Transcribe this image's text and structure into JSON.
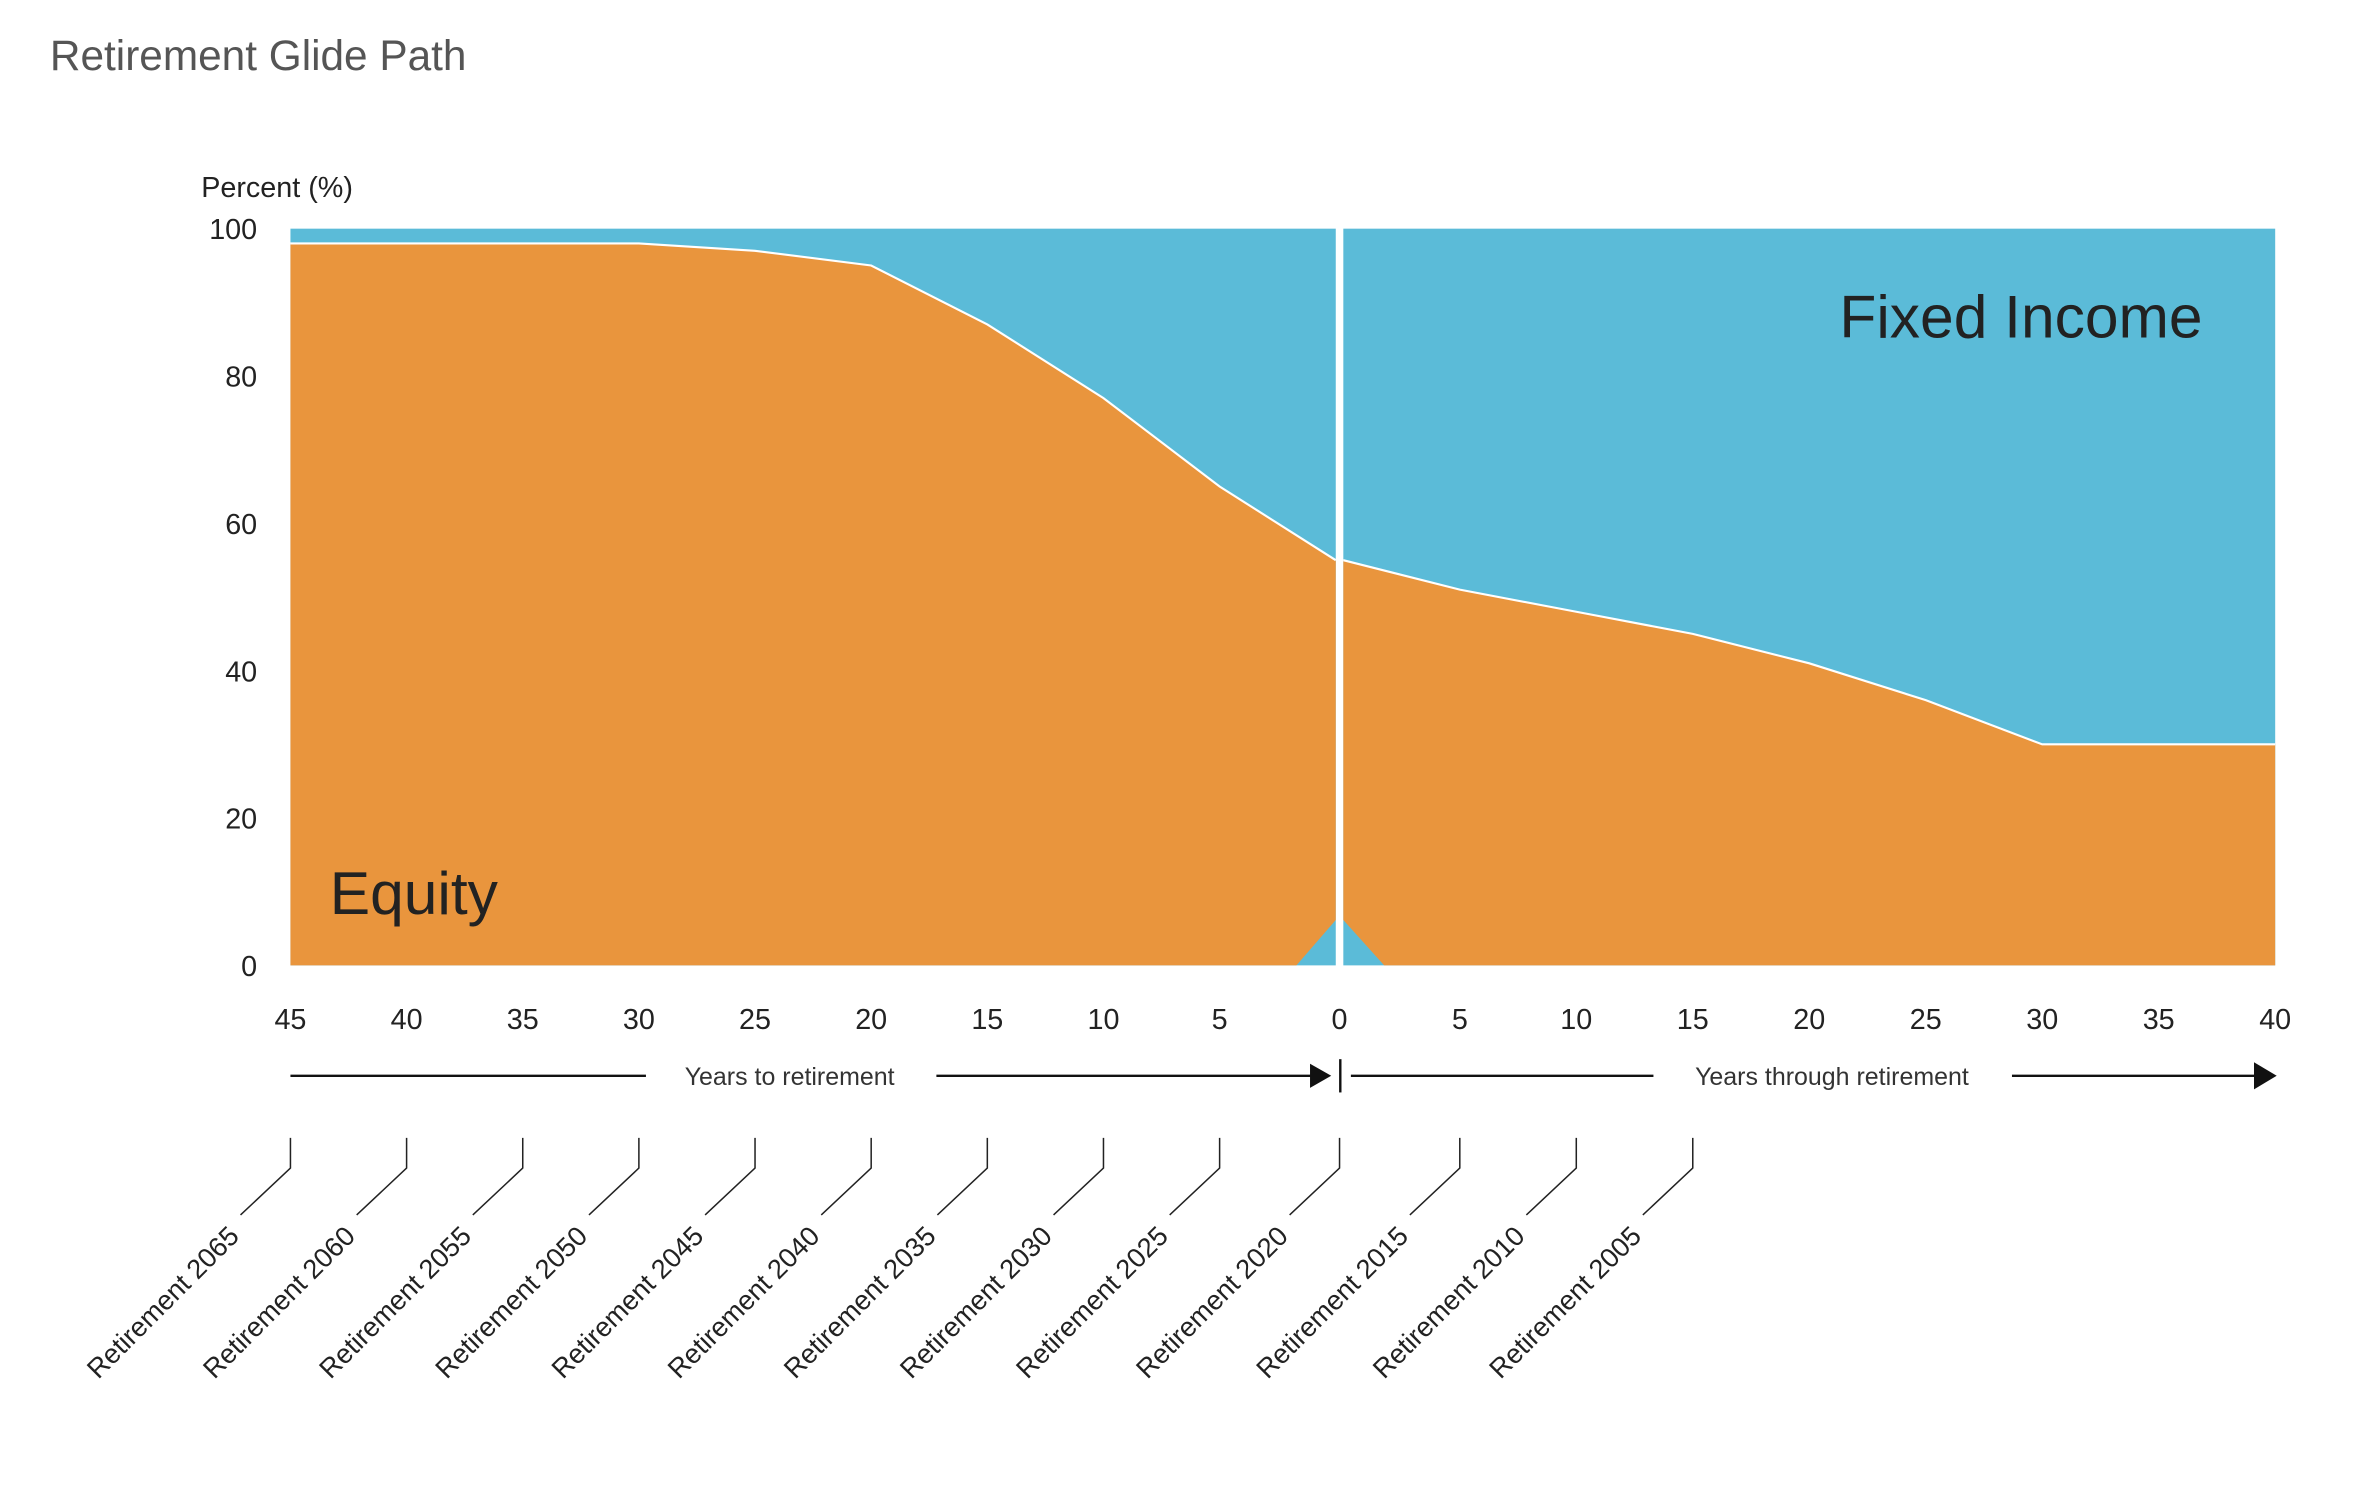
{
  "title": "Retirement Glide Path",
  "colors": {
    "equity": "#E9953D",
    "fixed_income": "#5BBBD8",
    "title": "#555555",
    "text": "#222222"
  },
  "chart_data": {
    "type": "area",
    "title": "Retirement Glide Path",
    "ylabel": "Percent (%)",
    "ylim": [
      0,
      100
    ],
    "yticks": [
      0,
      20,
      40,
      60,
      80,
      100
    ],
    "stacked": true,
    "grid": false,
    "segments": [
      {
        "name": "Years to retirement",
        "x": [
          45,
          40,
          35,
          30,
          25,
          20,
          15,
          10,
          5,
          0
        ],
        "x_tick_labels": [
          "45",
          "40",
          "35",
          "30",
          "25",
          "20",
          "15",
          "10",
          "5",
          "0"
        ],
        "series": [
          {
            "name": "Equity",
            "values": [
              98,
              98,
              98,
              98,
              97,
              95,
              87,
              77,
              65,
              55
            ]
          },
          {
            "name": "Fixed Income",
            "values": [
              2,
              2,
              2,
              2,
              3,
              5,
              13,
              23,
              35,
              45
            ]
          }
        ]
      },
      {
        "name": "Years through retirement",
        "x": [
          0,
          5,
          10,
          15,
          20,
          25,
          30,
          35,
          40
        ],
        "x_tick_labels": [
          "0",
          "5",
          "10",
          "15",
          "20",
          "25",
          "30",
          "35",
          "40"
        ],
        "series": [
          {
            "name": "Equity",
            "values": [
              55,
              51,
              48,
              45,
              41,
              36,
              30,
              30,
              30
            ]
          },
          {
            "name": "Fixed Income",
            "values": [
              45,
              49,
              52,
              55,
              59,
              64,
              70,
              70,
              70
            ]
          }
        ]
      }
    ],
    "annotations": {
      "equity_label": "Equity",
      "fixed_income_label": "Fixed Income",
      "arrow_left_label": "Years to retirement",
      "arrow_right_label": "Years through retirement"
    },
    "funds": [
      {
        "name": "Retirement 2065",
        "segment": 0,
        "x": 45
      },
      {
        "name": "Retirement 2060",
        "segment": 0,
        "x": 40
      },
      {
        "name": "Retirement 2055",
        "segment": 0,
        "x": 35
      },
      {
        "name": "Retirement 2050",
        "segment": 0,
        "x": 30
      },
      {
        "name": "Retirement 2045",
        "segment": 0,
        "x": 25
      },
      {
        "name": "Retirement 2040",
        "segment": 0,
        "x": 20
      },
      {
        "name": "Retirement 2035",
        "segment": 0,
        "x": 15
      },
      {
        "name": "Retirement 2030",
        "segment": 0,
        "x": 10
      },
      {
        "name": "Retirement 2025",
        "segment": 0,
        "x": 5
      },
      {
        "name": "Retirement 2020",
        "segment": 0,
        "x": 0
      },
      {
        "name": "Retirement 2015",
        "segment": 1,
        "x": 5
      },
      {
        "name": "Retirement 2010",
        "segment": 1,
        "x": 10
      },
      {
        "name": "Retirement 2005",
        "segment": 1,
        "x": 15
      }
    ]
  }
}
